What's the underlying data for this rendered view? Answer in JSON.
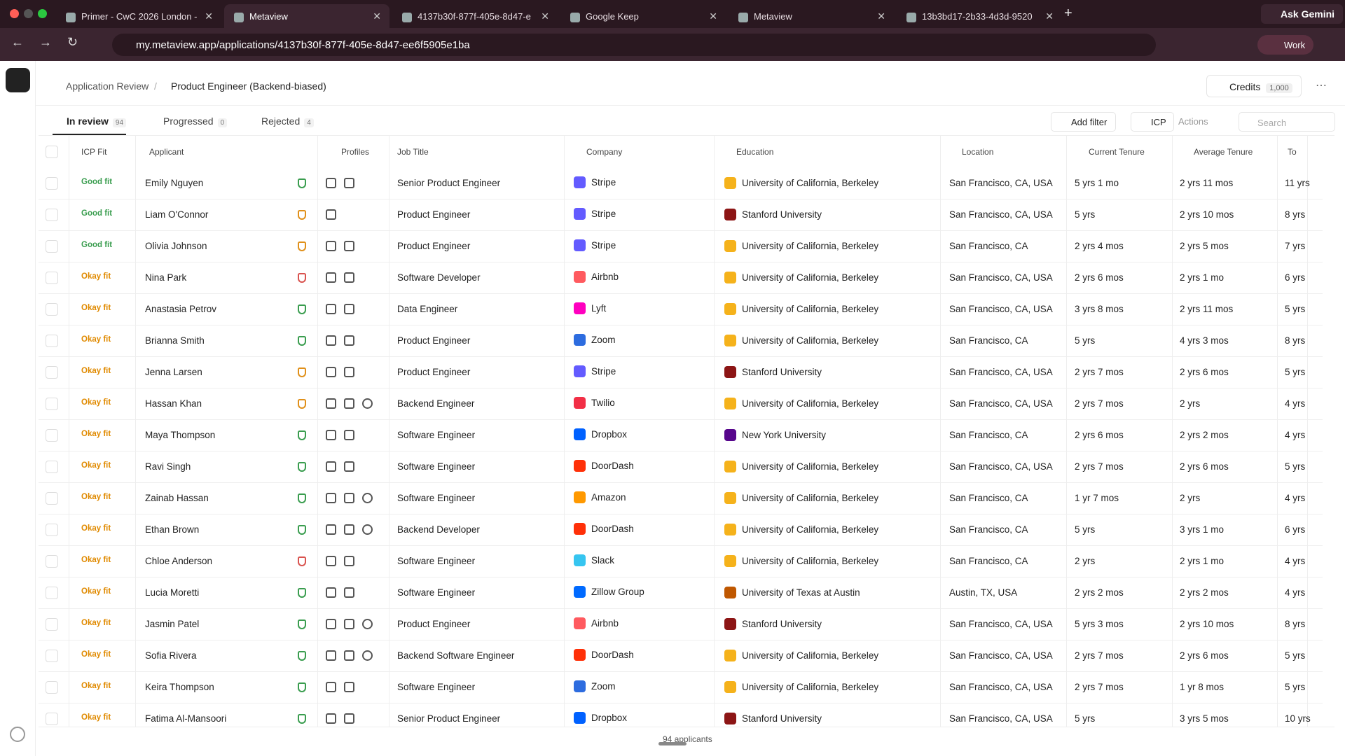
{
  "browser": {
    "tabs": [
      "Primer - CwC 2026 London -",
      "Metaview",
      "4137b30f-877f-405e-8d47-e",
      "Google Keep",
      "Metaview",
      "13b3bd17-2b33-4d3d-9520"
    ],
    "active_tab": 1,
    "gemini": "Ask Gemini",
    "url": "my.metaview.app/applications/4137b30f-877f-405e-8d47-ee6f5905e1ba",
    "profile": "Work"
  },
  "header": {
    "breadcrumb": "Application Review",
    "title": "Product Engineer (Backend-biased)",
    "credits_label": "Credits",
    "credits": "1,000"
  },
  "tabs": [
    {
      "label": "In review",
      "count": 94
    },
    {
      "label": "Progressed",
      "count": 0
    },
    {
      "label": "Rejected",
      "count": 4
    }
  ],
  "toolbar": {
    "filter": "Add filter",
    "icp": "ICP",
    "actions": "Actions",
    "search": "Search"
  },
  "table": {
    "columns": [
      "ICP Fit",
      "Applicant",
      "Profiles",
      "Job Title",
      "Company",
      "Education",
      "Location",
      "Current Tenure",
      "Average Tenure",
      "To"
    ],
    "rows": [
      [
        "Good fit",
        "#3a9d4f",
        "Emily Nguyen",
        "#3a9d4f",
        2,
        "Senior Product Engineer",
        "Stripe",
        "#635bff",
        "University of California, Berkeley",
        "#f5b21b",
        "San Francisco, CA, USA",
        "5 yrs 1 mo",
        "2 yrs 11 mos",
        "11 yrs"
      ],
      [
        "Good fit",
        "#3a9d4f",
        "Liam O'Connor",
        "#e0901a",
        1,
        "Product Engineer",
        "Stripe",
        "#635bff",
        "Stanford University",
        "#8c1515",
        "San Francisco, CA, USA",
        "5 yrs",
        "2 yrs 10 mos",
        "8 yrs"
      ],
      [
        "Good fit",
        "#3a9d4f",
        "Olivia Johnson",
        "#e0901a",
        2,
        "Product Engineer",
        "Stripe",
        "#635bff",
        "University of California, Berkeley",
        "#f5b21b",
        "San Francisco, CA",
        "2 yrs 4 mos",
        "2 yrs 5 mos",
        "7 yrs"
      ],
      [
        "Okay fit",
        "#e08a00",
        "Nina Park",
        "#d9534f",
        2,
        "Software Developer",
        "Airbnb",
        "#ff5a5f",
        "University of California, Berkeley",
        "#f5b21b",
        "San Francisco, CA, USA",
        "2 yrs 6 mos",
        "2 yrs 1 mo",
        "6 yrs"
      ],
      [
        "Okay fit",
        "#e08a00",
        "Anastasia Petrov",
        "#3a9d4f",
        2,
        "Data Engineer",
        "Lyft",
        "#ff00bf",
        "University of California, Berkeley",
        "#f5b21b",
        "San Francisco, CA, USA",
        "3 yrs 8 mos",
        "2 yrs 11 mos",
        "5 yrs"
      ],
      [
        "Okay fit",
        "#e08a00",
        "Brianna Smith",
        "#3a9d4f",
        2,
        "Product Engineer",
        "Zoom",
        "#2d6cdf",
        "University of California, Berkeley",
        "#f5b21b",
        "San Francisco, CA",
        "5 yrs",
        "4 yrs 3 mos",
        "8 yrs"
      ],
      [
        "Okay fit",
        "#e08a00",
        "Jenna Larsen",
        "#e0901a",
        2,
        "Product Engineer",
        "Stripe",
        "#635bff",
        "Stanford University",
        "#8c1515",
        "San Francisco, CA, USA",
        "2 yrs 7 mos",
        "2 yrs 6 mos",
        "5 yrs"
      ],
      [
        "Okay fit",
        "#e08a00",
        "Hassan Khan",
        "#e0901a",
        3,
        "Backend Engineer",
        "Twilio",
        "#f22f46",
        "University of California, Berkeley",
        "#f5b21b",
        "San Francisco, CA, USA",
        "2 yrs 7 mos",
        "2 yrs",
        "4 yrs"
      ],
      [
        "Okay fit",
        "#e08a00",
        "Maya Thompson",
        "#3a9d4f",
        2,
        "Software Engineer",
        "Dropbox",
        "#0061ff",
        "New York University",
        "#57068c",
        "San Francisco, CA",
        "2 yrs 6 mos",
        "2 yrs 2 mos",
        "4 yrs"
      ],
      [
        "Okay fit",
        "#e08a00",
        "Ravi Singh",
        "#3a9d4f",
        2,
        "Software Engineer",
        "DoorDash",
        "#ff3008",
        "University of California, Berkeley",
        "#f5b21b",
        "San Francisco, CA, USA",
        "2 yrs 7 mos",
        "2 yrs 6 mos",
        "5 yrs"
      ],
      [
        "Okay fit",
        "#e08a00",
        "Zainab Hassan",
        "#3a9d4f",
        3,
        "Software Engineer",
        "Amazon",
        "#ff9900",
        "University of California, Berkeley",
        "#f5b21b",
        "San Francisco, CA",
        "1 yr 7 mos",
        "2 yrs",
        "4 yrs"
      ],
      [
        "Okay fit",
        "#e08a00",
        "Ethan Brown",
        "#3a9d4f",
        3,
        "Backend Developer",
        "DoorDash",
        "#ff3008",
        "University of California, Berkeley",
        "#f5b21b",
        "San Francisco, CA",
        "5 yrs",
        "3 yrs 1 mo",
        "6 yrs"
      ],
      [
        "Okay fit",
        "#e08a00",
        "Chloe Anderson",
        "#d9534f",
        2,
        "Software Engineer",
        "Slack",
        "#36c5f0",
        "University of California, Berkeley",
        "#f5b21b",
        "San Francisco, CA",
        "2 yrs",
        "2 yrs 1 mo",
        "4 yrs"
      ],
      [
        "Okay fit",
        "#e08a00",
        "Lucia Moretti",
        "#3a9d4f",
        2,
        "Software Engineer",
        "Zillow Group",
        "#006aff",
        "University of Texas at Austin",
        "#bf5700",
        "Austin, TX, USA",
        "2 yrs 2 mos",
        "2 yrs 2 mos",
        "4 yrs"
      ],
      [
        "Okay fit",
        "#e08a00",
        "Jasmin Patel",
        "#3a9d4f",
        3,
        "Product Engineer",
        "Airbnb",
        "#ff5a5f",
        "Stanford University",
        "#8c1515",
        "San Francisco, CA, USA",
        "5 yrs 3 mos",
        "2 yrs 10 mos",
        "8 yrs"
      ],
      [
        "Okay fit",
        "#e08a00",
        "Sofia Rivera",
        "#3a9d4f",
        3,
        "Backend Software Engineer",
        "DoorDash",
        "#ff3008",
        "University of California, Berkeley",
        "#f5b21b",
        "San Francisco, CA, USA",
        "2 yrs 7 mos",
        "2 yrs 6 mos",
        "5 yrs"
      ],
      [
        "Okay fit",
        "#e08a00",
        "Keira Thompson",
        "#3a9d4f",
        2,
        "Software Engineer",
        "Zoom",
        "#2d6cdf",
        "University of California, Berkeley",
        "#f5b21b",
        "San Francisco, CA, USA",
        "2 yrs 7 mos",
        "1 yr 8 mos",
        "5 yrs"
      ],
      [
        "Okay fit",
        "#e08a00",
        "Fatima Al-Mansoori",
        "#3a9d4f",
        2,
        "Senior Product Engineer",
        "Dropbox",
        "#0061ff",
        "Stanford University",
        "#8c1515",
        "San Francisco, CA, USA",
        "5 yrs",
        "3 yrs 5 mos",
        "10 yrs"
      ]
    ]
  },
  "footer": "94 applicants"
}
